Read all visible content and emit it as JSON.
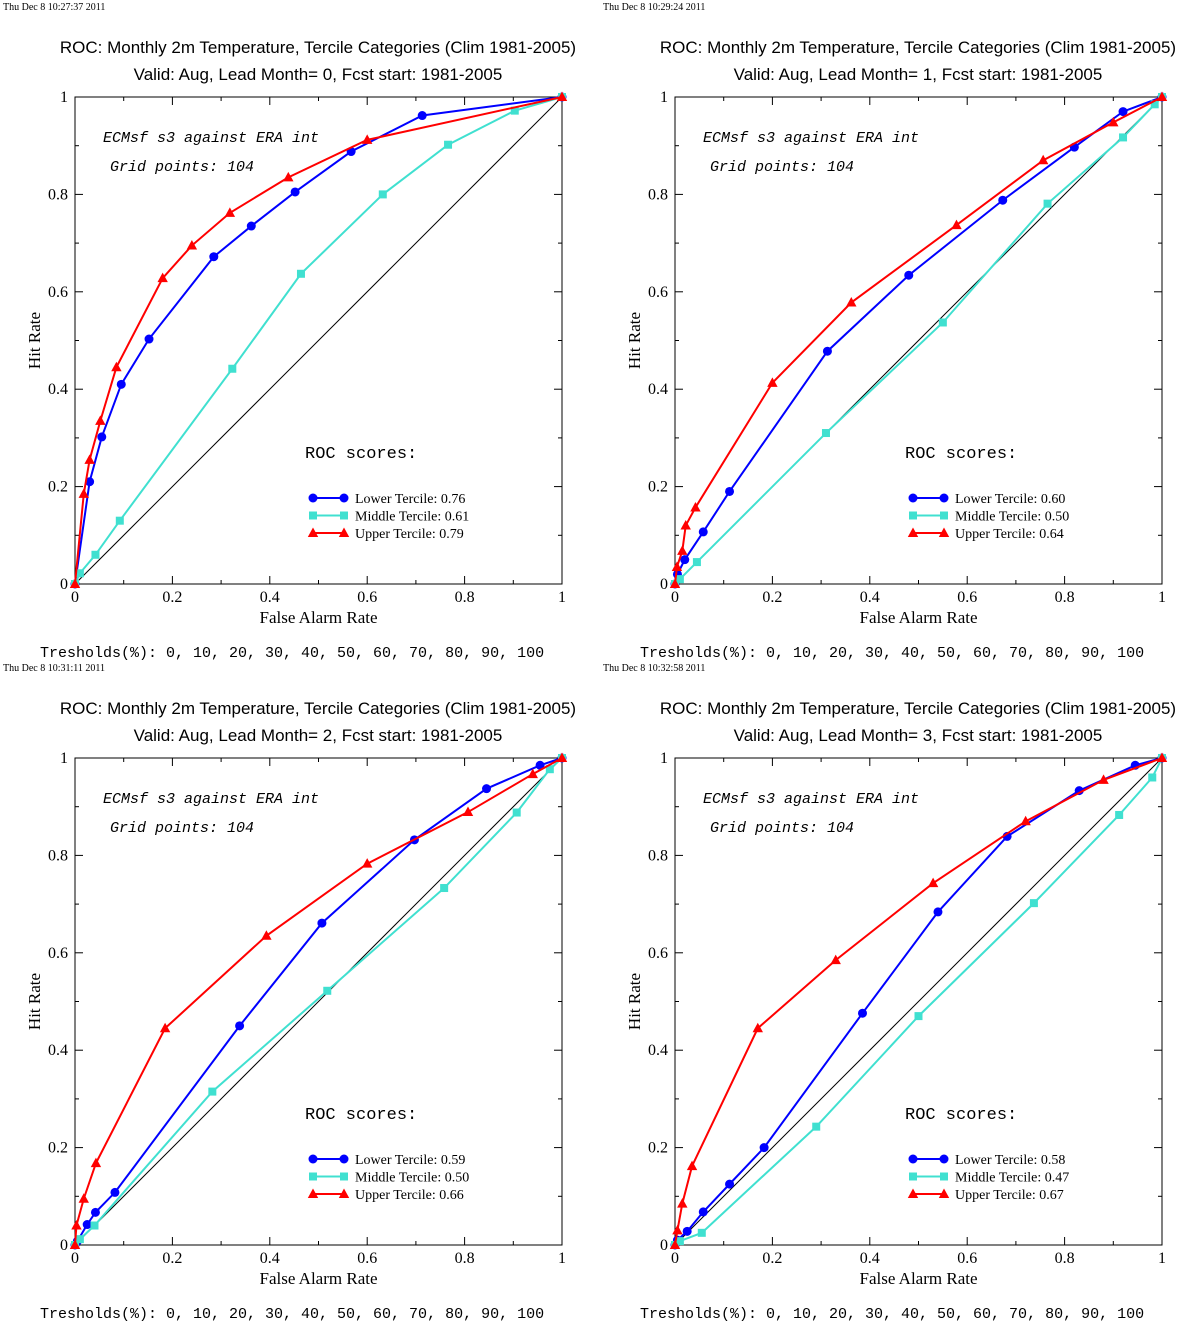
{
  "chart_data": [
    {
      "type": "line",
      "timestamp": "Thu Dec  8 10:27:37 2011",
      "title": "ROC: Monthly 2m Temperature, Tercile Categories (Clim 1981-2005)",
      "subtitle": "Valid: Aug, Lead Month= 0, Fcst start: 1981-2005",
      "xlabel": "False Alarm Rate",
      "ylabel": "Hit Rate",
      "xlim": [
        0,
        1
      ],
      "ylim": [
        0,
        1
      ],
      "x_ticks": [
        "0",
        "0.2",
        "0.4",
        "0.6",
        "0.8",
        "1"
      ],
      "y_ticks": [
        "0",
        "0.2",
        "0.4",
        "0.6",
        "0.8",
        "1"
      ],
      "annotation_1": "ECMsf s3 against ERA int",
      "annotation_2": "Grid points:  104",
      "scores_heading": "ROC scores:",
      "legend_position": "lower-right",
      "footer": "Tresholds(%): 0, 10, 20, 30, 40, 50, 60, 70, 80, 90, 100",
      "grid": false,
      "diagonal": true,
      "series": [
        {
          "name": "Lower Tercile: 0.76",
          "color": "#0000ff",
          "marker": "circle",
          "x": [
            0,
            0.03,
            0.055,
            0.095,
            0.152,
            0.285,
            0.362,
            0.452,
            0.567,
            0.713,
            1
          ],
          "y": [
            0,
            0.21,
            0.302,
            0.41,
            0.503,
            0.672,
            0.735,
            0.805,
            0.888,
            0.962,
            1
          ]
        },
        {
          "name": "Middle Tercile: 0.61",
          "color": "#40e0d0",
          "marker": "square",
          "x": [
            0,
            0.01,
            0.042,
            0.092,
            0.323,
            0.464,
            0.632,
            0.766,
            0.903,
            1
          ],
          "y": [
            0,
            0.022,
            0.06,
            0.13,
            0.442,
            0.637,
            0.8,
            0.902,
            0.972,
            1
          ]
        },
        {
          "name": "Upper Tercile: 0.79",
          "color": "#ff0000",
          "marker": "triangle",
          "x": [
            0,
            0.018,
            0.03,
            0.052,
            0.085,
            0.18,
            0.24,
            0.318,
            0.438,
            0.6,
            1
          ],
          "y": [
            0,
            0.185,
            0.255,
            0.335,
            0.445,
            0.628,
            0.695,
            0.762,
            0.835,
            0.912,
            1
          ]
        }
      ]
    },
    {
      "type": "line",
      "timestamp": "Thu Dec  8 10:29:24 2011",
      "title": "ROC: Monthly 2m Temperature, Tercile Categories (Clim 1981-2005)",
      "subtitle": "Valid: Aug, Lead Month= 1, Fcst start: 1981-2005",
      "xlabel": "False Alarm Rate",
      "ylabel": "Hit Rate",
      "xlim": [
        0,
        1
      ],
      "ylim": [
        0,
        1
      ],
      "x_ticks": [
        "0",
        "0.2",
        "0.4",
        "0.6",
        "0.8",
        "1"
      ],
      "y_ticks": [
        "0",
        "0.2",
        "0.4",
        "0.6",
        "0.8",
        "1"
      ],
      "annotation_1": "ECMsf s3 against ERA int",
      "annotation_2": "Grid points:  104",
      "scores_heading": "ROC scores:",
      "legend_position": "lower-right",
      "footer": "Tresholds(%): 0, 10, 20, 30, 40, 50, 60, 70, 80, 90, 100",
      "grid": false,
      "diagonal": true,
      "series": [
        {
          "name": "Lower Tercile: 0.60",
          "color": "#0000ff",
          "marker": "circle",
          "x": [
            0,
            0.005,
            0.02,
            0.058,
            0.112,
            0.313,
            0.48,
            0.673,
            0.82,
            0.92,
            1
          ],
          "y": [
            0,
            0.02,
            0.05,
            0.107,
            0.19,
            0.478,
            0.634,
            0.788,
            0.897,
            0.97,
            1
          ]
        },
        {
          "name": "Middle Tercile: 0.50",
          "color": "#40e0d0",
          "marker": "square",
          "x": [
            0,
            0.01,
            0.045,
            0.31,
            0.55,
            0.765,
            0.92,
            0.985,
            1
          ],
          "y": [
            0,
            0.01,
            0.045,
            0.31,
            0.537,
            0.781,
            0.917,
            0.985,
            1
          ]
        },
        {
          "name": "Upper Tercile: 0.64",
          "color": "#ff0000",
          "marker": "triangle",
          "x": [
            0,
            0.004,
            0.015,
            0.022,
            0.042,
            0.2,
            0.362,
            0.578,
            0.756,
            0.9,
            1
          ],
          "y": [
            0,
            0.035,
            0.068,
            0.12,
            0.157,
            0.413,
            0.578,
            0.737,
            0.87,
            0.948,
            1
          ]
        }
      ]
    },
    {
      "type": "line",
      "timestamp": "Thu Dec  8 10:31:11 2011",
      "title": "ROC: Monthly 2m Temperature, Tercile Categories (Clim 1981-2005)",
      "subtitle": "Valid: Aug, Lead Month= 2, Fcst start: 1981-2005",
      "xlabel": "False Alarm Rate",
      "ylabel": "Hit Rate",
      "xlim": [
        0,
        1
      ],
      "ylim": [
        0,
        1
      ],
      "x_ticks": [
        "0",
        "0.2",
        "0.4",
        "0.6",
        "0.8",
        "1"
      ],
      "y_ticks": [
        "0",
        "0.2",
        "0.4",
        "0.6",
        "0.8",
        "1"
      ],
      "annotation_1": "ECMsf s3 against ERA int",
      "annotation_2": "Grid points:  104",
      "scores_heading": "ROC scores:",
      "legend_position": "lower-right",
      "footer": "Tresholds(%): 0, 10, 20, 30, 40, 50, 60, 70, 80, 90, 100",
      "grid": false,
      "diagonal": true,
      "series": [
        {
          "name": "Lower Tercile: 0.59",
          "color": "#0000ff",
          "marker": "circle",
          "x": [
            0,
            0.005,
            0.025,
            0.042,
            0.082,
            0.338,
            0.507,
            0.697,
            0.845,
            0.955,
            1
          ],
          "y": [
            0,
            0.008,
            0.042,
            0.067,
            0.108,
            0.45,
            0.661,
            0.832,
            0.937,
            0.985,
            1
          ]
        },
        {
          "name": "Middle Tercile: 0.50",
          "color": "#40e0d0",
          "marker": "square",
          "x": [
            0,
            0.01,
            0.04,
            0.282,
            0.518,
            0.758,
            0.907,
            0.975,
            1
          ],
          "y": [
            0,
            0.012,
            0.04,
            0.315,
            0.522,
            0.733,
            0.888,
            0.977,
            1
          ]
        },
        {
          "name": "Upper Tercile: 0.66",
          "color": "#ff0000",
          "marker": "triangle",
          "x": [
            0,
            0.003,
            0.018,
            0.043,
            0.185,
            0.393,
            0.6,
            0.807,
            0.94,
            1
          ],
          "y": [
            0,
            0.04,
            0.095,
            0.168,
            0.445,
            0.635,
            0.783,
            0.889,
            0.967,
            1
          ]
        }
      ]
    },
    {
      "type": "line",
      "timestamp": "Thu Dec  8 10:32:58 2011",
      "title": "ROC: Monthly 2m Temperature, Tercile Categories (Clim 1981-2005)",
      "subtitle": "Valid: Aug, Lead Month= 3, Fcst start: 1981-2005",
      "xlabel": "False Alarm Rate",
      "ylabel": "Hit Rate",
      "xlim": [
        0,
        1
      ],
      "ylim": [
        0,
        1
      ],
      "x_ticks": [
        "0",
        "0.2",
        "0.4",
        "0.6",
        "0.8",
        "1"
      ],
      "y_ticks": [
        "0",
        "0.2",
        "0.4",
        "0.6",
        "0.8",
        "1"
      ],
      "annotation_1": "ECMsf s3 against ERA int",
      "annotation_2": "Grid points:  104",
      "scores_heading": "ROC scores:",
      "legend_position": "lower-right",
      "footer": "Tresholds(%): 0, 10, 20, 30, 40, 50, 60, 70, 80, 90, 100",
      "grid": false,
      "diagonal": true,
      "series": [
        {
          "name": "Lower Tercile: 0.58",
          "color": "#0000ff",
          "marker": "circle",
          "x": [
            0,
            0.005,
            0.025,
            0.058,
            0.112,
            0.183,
            0.385,
            0.54,
            0.682,
            0.83,
            0.945,
            1
          ],
          "y": [
            0,
            0.01,
            0.028,
            0.068,
            0.125,
            0.2,
            0.476,
            0.684,
            0.839,
            0.933,
            0.985,
            1
          ]
        },
        {
          "name": "Middle Tercile: 0.47",
          "color": "#40e0d0",
          "marker": "square",
          "x": [
            0,
            0.01,
            0.055,
            0.29,
            0.5,
            0.737,
            0.912,
            0.98,
            1
          ],
          "y": [
            0,
            0.008,
            0.025,
            0.243,
            0.47,
            0.702,
            0.883,
            0.96,
            1
          ]
        },
        {
          "name": "Upper Tercile: 0.67",
          "color": "#ff0000",
          "marker": "triangle",
          "x": [
            0,
            0.005,
            0.015,
            0.035,
            0.17,
            0.33,
            0.53,
            0.72,
            0.88,
            1
          ],
          "y": [
            0,
            0.03,
            0.085,
            0.162,
            0.445,
            0.585,
            0.743,
            0.87,
            0.955,
            1
          ]
        }
      ]
    }
  ]
}
